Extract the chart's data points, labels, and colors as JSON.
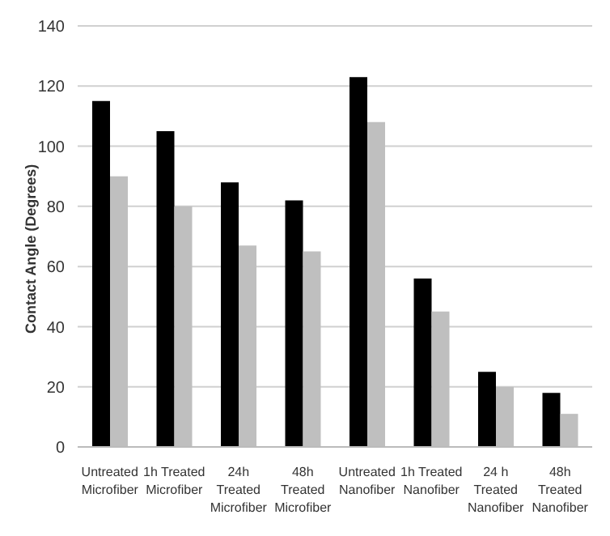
{
  "chart_data": {
    "type": "bar",
    "ylabel": "Contact Angle (Degrees)",
    "categories": [
      "Untreated Microfiber",
      "1h Treated Microfiber",
      "24h Treated Microfiber",
      "48h Treated Microfiber",
      "Untreated Nanofiber",
      "1h Treated Nanofiber",
      "24 h Treated Nanofiber",
      "48h Treated Nanofiber"
    ],
    "series": [
      {
        "color": "#000000",
        "values": [
          115,
          105,
          88,
          82,
          123,
          56,
          25,
          18
        ]
      },
      {
        "color": "#bfbfbf",
        "values": [
          90,
          80,
          67,
          65,
          108,
          45,
          20,
          11
        ]
      }
    ],
    "ylim": [
      0,
      140
    ],
    "yticks": [
      0,
      20,
      40,
      60,
      80,
      100,
      120,
      140
    ],
    "grid": "y"
  }
}
